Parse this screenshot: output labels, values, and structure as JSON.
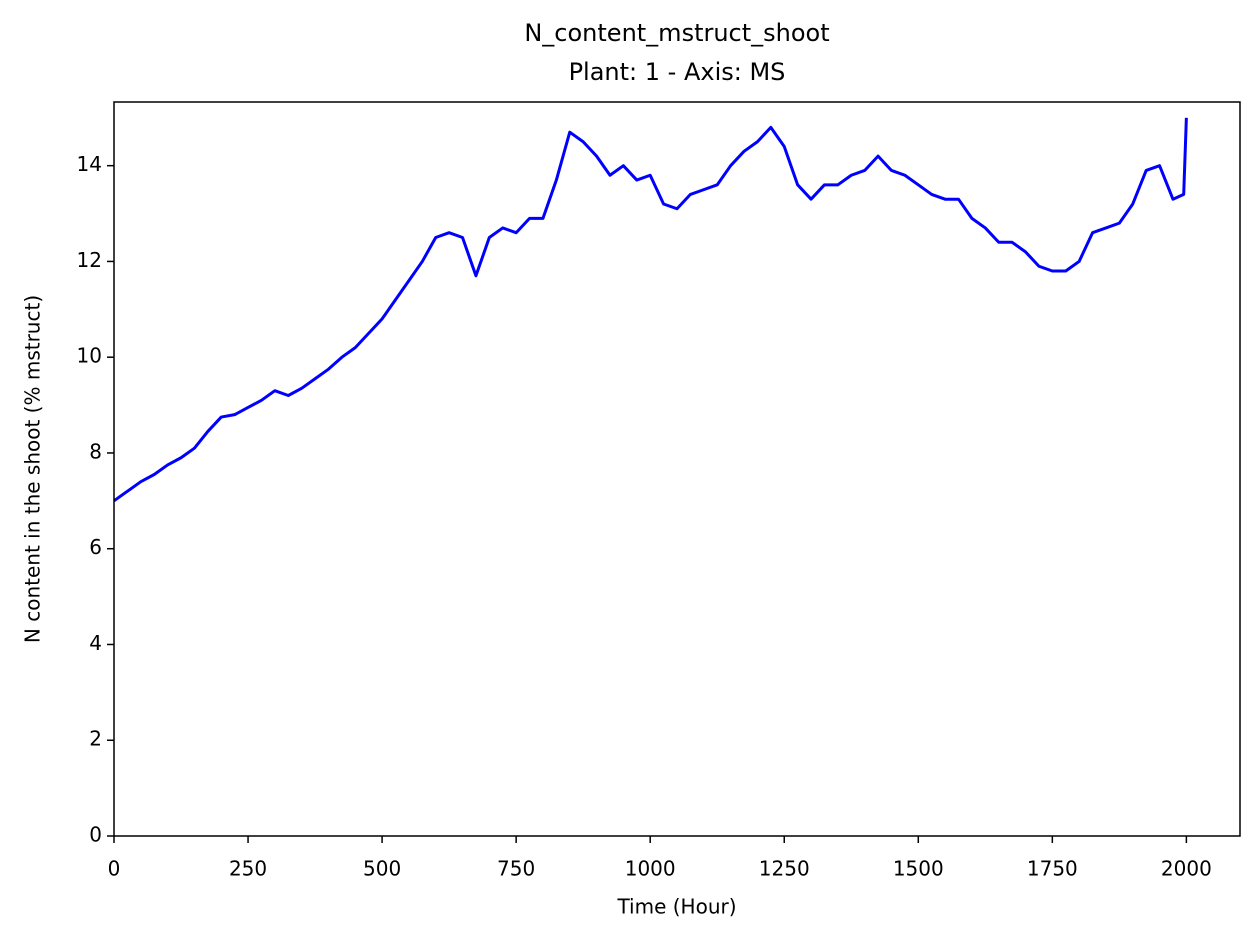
{
  "chart_data": {
    "type": "line",
    "title": "N_content_mstruct_shoot",
    "subtitle": "Plant: 1 - Axis: MS",
    "x_label": "Time (Hour)",
    "y_label": "N content in the shoot (% mstruct)",
    "xlim": [
      0,
      2100
    ],
    "ylim": [
      0,
      15.33
    ],
    "xticks": [
      0,
      250,
      500,
      750,
      1000,
      1250,
      1500,
      1750,
      2000
    ],
    "yticks": [
      0,
      2,
      4,
      6,
      8,
      10,
      12,
      14
    ],
    "grid": false,
    "x": [
      0,
      25,
      50,
      75,
      100,
      125,
      150,
      175,
      200,
      225,
      250,
      275,
      300,
      325,
      350,
      375,
      400,
      425,
      450,
      475,
      500,
      525,
      550,
      575,
      600,
      625,
      650,
      675,
      700,
      725,
      750,
      775,
      800,
      825,
      850,
      875,
      900,
      925,
      950,
      975,
      1000,
      1025,
      1050,
      1075,
      1100,
      1125,
      1150,
      1175,
      1200,
      1225,
      1250,
      1275,
      1300,
      1325,
      1350,
      1375,
      1400,
      1425,
      1450,
      1475,
      1500,
      1525,
      1550,
      1575,
      1600,
      1625,
      1650,
      1675,
      1700,
      1725,
      1750,
      1775,
      1800,
      1825,
      1850,
      1875,
      1900,
      1925,
      1950,
      1975,
      1995,
      2000
    ],
    "series": [
      {
        "name": "N_content_mstruct_shoot",
        "color": "#0000ff",
        "values": [
          7.0,
          7.2,
          7.4,
          7.55,
          7.75,
          7.9,
          8.1,
          8.45,
          8.75,
          8.8,
          8.95,
          9.1,
          9.3,
          9.2,
          9.35,
          9.55,
          9.75,
          10.0,
          10.2,
          10.5,
          10.8,
          11.2,
          11.6,
          12.0,
          12.5,
          12.6,
          12.5,
          11.7,
          12.5,
          12.7,
          12.6,
          12.9,
          12.9,
          13.7,
          14.7,
          14.5,
          14.2,
          13.8,
          14.0,
          13.7,
          13.8,
          13.2,
          13.1,
          13.4,
          13.5,
          13.6,
          14.0,
          14.3,
          14.5,
          14.8,
          14.4,
          13.6,
          13.3,
          13.6,
          13.6,
          13.8,
          13.9,
          14.2,
          13.9,
          13.8,
          13.6,
          13.4,
          13.3,
          13.3,
          12.9,
          12.7,
          12.4,
          12.4,
          12.2,
          11.9,
          11.8,
          11.8,
          12.0,
          12.6,
          12.7,
          12.8,
          13.2,
          13.9,
          14.0,
          13.3,
          13.4,
          15.0
        ]
      }
    ]
  }
}
